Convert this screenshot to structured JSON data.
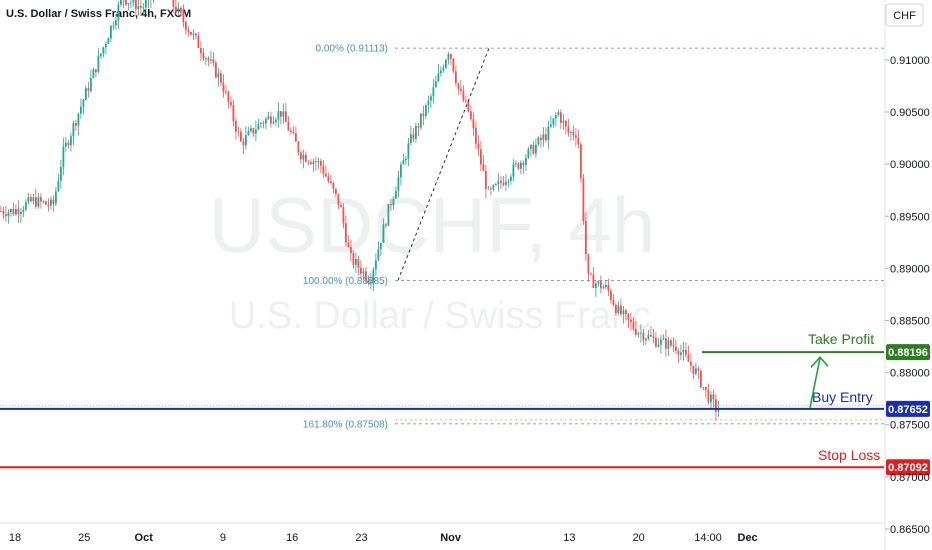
{
  "header": {
    "title": "U.S. Dollar / Swiss Franc, 4h, FXCM",
    "currency_button": "CHF"
  },
  "watermark": {
    "symbol": "USDCHF, 4h",
    "name": "U.S. Dollar / Swiss Franc"
  },
  "chart_data": {
    "type": "candlestick",
    "title": "U.S. Dollar / Swiss Franc, 4h, FXCM",
    "y_range": [
      0.8625,
      0.9145
    ],
    "y_ticks": [
      "0.91000",
      "0.90500",
      "0.90000",
      "0.89500",
      "0.89000",
      "0.88500",
      "0.88000",
      "0.87500",
      "0.87000",
      "0.86500"
    ],
    "x_ticks": [
      "18",
      "25",
      "Oct",
      "9",
      "16",
      "23",
      "Nov",
      "13",
      "20",
      "14:00",
      "Dec"
    ],
    "grid": false,
    "price_path": [
      {
        "date": "Sep 18",
        "price": 0.8955
      },
      {
        "date": "Sep 20",
        "price": 0.8965
      },
      {
        "date": "Sep 22",
        "price": 0.896
      },
      {
        "date": "Sep 23",
        "price": 0.901
      },
      {
        "date": "Sep 25",
        "price": 0.906
      },
      {
        "date": "Sep 27",
        "price": 0.911
      },
      {
        "date": "Sep 29",
        "price": 0.916
      },
      {
        "date": "Oct 1",
        "price": 0.915
      },
      {
        "date": "Oct 3",
        "price": 0.917
      },
      {
        "date": "Oct 5",
        "price": 0.914
      },
      {
        "date": "Oct 7",
        "price": 0.911
      },
      {
        "date": "Oct 9",
        "price": 0.908
      },
      {
        "date": "Oct 11",
        "price": 0.902
      },
      {
        "date": "Oct 13",
        "price": 0.904
      },
      {
        "date": "Oct 15",
        "price": 0.905
      },
      {
        "date": "Oct 17",
        "price": 0.901
      },
      {
        "date": "Oct 19",
        "price": 0.9
      },
      {
        "date": "Oct 21",
        "price": 0.896
      },
      {
        "date": "Oct 22",
        "price": 0.891
      },
      {
        "date": "Oct 23",
        "price": 0.89
      },
      {
        "date": "Oct 24",
        "price": 0.8889
      },
      {
        "date": "Oct 26",
        "price": 0.896
      },
      {
        "date": "Oct 28",
        "price": 0.902
      },
      {
        "date": "Oct 30",
        "price": 0.906
      },
      {
        "date": "Nov 1",
        "price": 0.9111
      },
      {
        "date": "Nov 2",
        "price": 0.907
      },
      {
        "date": "Nov 3",
        "price": 0.905
      },
      {
        "date": "Nov 5",
        "price": 0.897
      },
      {
        "date": "Nov 7",
        "price": 0.899
      },
      {
        "date": "Nov 9",
        "price": 0.901
      },
      {
        "date": "Nov 11",
        "price": 0.903
      },
      {
        "date": "Nov 12",
        "price": 0.905
      },
      {
        "date": "Nov 13",
        "price": 0.903
      },
      {
        "date": "Nov 14",
        "price": 0.903
      },
      {
        "date": "Nov 15",
        "price": 0.889
      },
      {
        "date": "Nov 17",
        "price": 0.888
      },
      {
        "date": "Nov 18",
        "price": 0.886
      },
      {
        "date": "Nov 20",
        "price": 0.884
      },
      {
        "date": "Nov 22",
        "price": 0.883
      },
      {
        "date": "Nov 24",
        "price": 0.8825
      },
      {
        "date": "Nov 26",
        "price": 0.88
      },
      {
        "date": "Nov 27",
        "price": 0.878
      },
      {
        "date": "Nov 28",
        "price": 0.8765
      }
    ],
    "fibonacci": [
      {
        "label": "0.00% (0.91113)",
        "price": 0.91113
      },
      {
        "label": "100.00% (0.88885)",
        "price": 0.88885
      },
      {
        "label": "161.80% (0.87508)",
        "price": 0.87508
      }
    ],
    "levels": [
      {
        "name": "Take Profit",
        "price": 0.88196,
        "badge": "0.88196",
        "color": "#2e7d1e"
      },
      {
        "name": "Buy Entry",
        "price": 0.87652,
        "badge": "0.87652",
        "color": "#1a2fb0"
      },
      {
        "name": "Stop Loss",
        "price": 0.87092,
        "badge": "0.87092",
        "color": "#e01e1e"
      }
    ],
    "colors": {
      "up": "#26a69a",
      "down": "#ef5350",
      "fib": "#4a8fc2",
      "axis_text": "#131722"
    }
  }
}
